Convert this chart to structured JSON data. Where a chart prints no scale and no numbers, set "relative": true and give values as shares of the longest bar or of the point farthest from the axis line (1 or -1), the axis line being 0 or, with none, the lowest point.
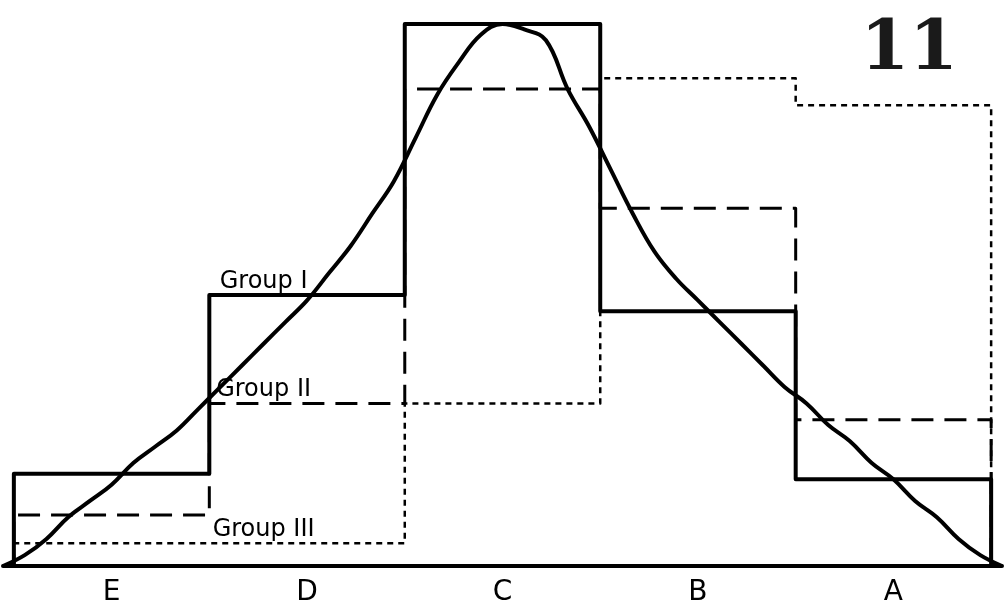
{
  "chart_data": {
    "type": "step",
    "title": "11",
    "relative": true,
    "categories": [
      null,
      null,
      null,
      null,
      null,
      "E",
      null,
      null,
      null,
      null,
      null,
      null,
      null,
      null,
      "D",
      null,
      null,
      null,
      null,
      null,
      null,
      null,
      null,
      "C",
      null,
      null,
      null,
      null,
      null,
      null,
      null,
      null,
      "B",
      null,
      null,
      null,
      null,
      null,
      null,
      null,
      null,
      "A",
      null,
      null,
      null,
      null,
      null
    ],
    "series": [
      {
        "name": "Group I",
        "color": "#000000",
        "line_style": "solid",
        "values": [
          0,
          0.17,
          0.17,
          0.17,
          0.17,
          0.17,
          0.17,
          0.17,
          0.17,
          0.17,
          0.5,
          0.5,
          0.5,
          0.5,
          0.5,
          0.5,
          0.5,
          0.5,
          0.5,
          1.0,
          1.0,
          1.0,
          1.0,
          1.0,
          1.0,
          1.0,
          1.0,
          1.0,
          0.47,
          0.47,
          0.47,
          0.47,
          0.47,
          0.47,
          0.47,
          0.47,
          0.47,
          0.16,
          0.16,
          0.16,
          0.16,
          0.16,
          0.16,
          0.16,
          0.16,
          0.16,
          0
        ]
      },
      {
        "name": "Group II",
        "color": "#000000",
        "line_style": "dashed",
        "values": [
          0,
          0.094,
          0.094,
          0.094,
          0.094,
          0.094,
          0.094,
          0.094,
          0.094,
          0.094,
          0.3,
          0.3,
          0.3,
          0.3,
          0.3,
          0.3,
          0.3,
          0.3,
          0.3,
          0.88,
          0.88,
          0.88,
          0.88,
          0.88,
          0.88,
          0.88,
          0.88,
          0.88,
          0.66,
          0.66,
          0.66,
          0.66,
          0.66,
          0.66,
          0.66,
          0.66,
          0.66,
          0.27,
          0.27,
          0.27,
          0.27,
          0.27,
          0.27,
          0.27,
          0.27,
          0.27,
          0
        ]
      },
      {
        "name": "Group III",
        "color": "#000000",
        "line_style": "dotted",
        "values": [
          0,
          0.042,
          0.042,
          0.042,
          0.042,
          0.042,
          0.042,
          0.042,
          0.042,
          0.042,
          0.042,
          0.042,
          0.042,
          0.042,
          0.042,
          0.042,
          0.042,
          0.042,
          0.042,
          0.3,
          0.3,
          0.3,
          0.3,
          0.3,
          0.3,
          0.3,
          0.3,
          0.3,
          0.9,
          0.9,
          0.9,
          0.9,
          0.9,
          0.9,
          0.9,
          0.9,
          0.9,
          0.85,
          0.85,
          0.85,
          0.85,
          0.85,
          0.85,
          0.85,
          0.85,
          0.85,
          0
        ]
      },
      {
        "type": "line",
        "color": "#000000",
        "line_style": "solid",
        "values": [
          0,
          0.02,
          0.05,
          0.09,
          0.12,
          0.15,
          0.19,
          0.22,
          0.25,
          0.29,
          0.33,
          0.37,
          0.41,
          0.45,
          0.49,
          0.54,
          0.59,
          0.65,
          0.71,
          0.79,
          0.87,
          0.93,
          0.98,
          1.0,
          0.99,
          0.97,
          0.88,
          0.81,
          0.73,
          0.65,
          0.58,
          0.53,
          0.49,
          0.45,
          0.41,
          0.37,
          0.33,
          0.3,
          0.26,
          0.23,
          0.19,
          0.16,
          0.12,
          0.09,
          0.05,
          0.02,
          0
        ]
      }
    ]
  }
}
